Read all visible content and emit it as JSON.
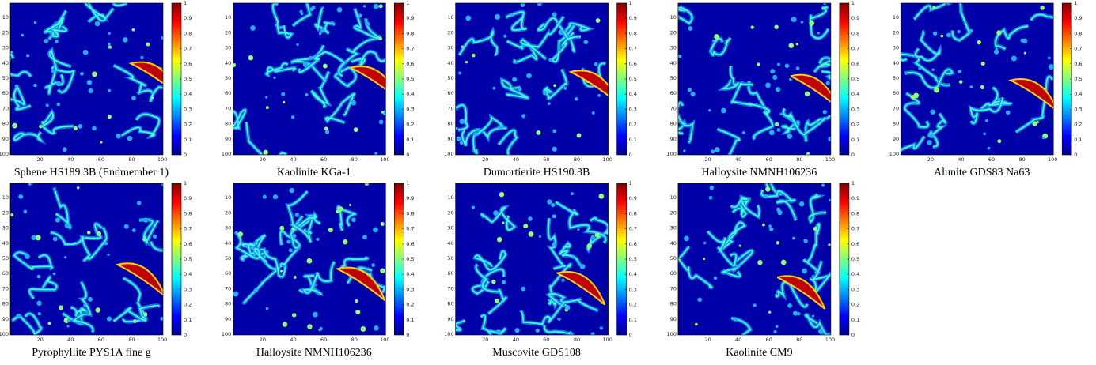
{
  "chart_data": [
    {
      "type": "heatmap",
      "title": "Sphene HS189.3B (Endmember 1)",
      "colormap": "jet",
      "xlim": [
        0.5,
        100.5
      ],
      "ylim": [
        0.5,
        100.5
      ],
      "xticks": [
        20,
        40,
        60,
        80,
        100
      ],
      "yticks": [
        10,
        20,
        30,
        40,
        50,
        60,
        70,
        80,
        90,
        100
      ],
      "clim": [
        0,
        1
      ],
      "cticks": [
        0,
        0.1,
        0.2,
        0.3,
        0.4,
        0.5,
        0.6,
        0.7,
        0.8,
        0.9,
        1
      ]
    },
    {
      "type": "heatmap",
      "title": "Kaolinite KGa-1",
      "colormap": "jet",
      "xlim": [
        0.5,
        100.5
      ],
      "ylim": [
        0.5,
        100.5
      ],
      "xticks": [
        20,
        40,
        60,
        80,
        100
      ],
      "yticks": [
        10,
        20,
        30,
        40,
        50,
        60,
        70,
        80,
        90,
        100
      ],
      "clim": [
        0,
        1
      ],
      "cticks": [
        0,
        0.1,
        0.2,
        0.3,
        0.4,
        0.5,
        0.6,
        0.7,
        0.8,
        0.9,
        1
      ]
    },
    {
      "type": "heatmap",
      "title": "Dumortierite HS190.3B",
      "colormap": "jet",
      "xlim": [
        0.5,
        100.5
      ],
      "ylim": [
        0.5,
        100.5
      ],
      "xticks": [
        20,
        40,
        60,
        80,
        100
      ],
      "yticks": [
        10,
        20,
        30,
        40,
        50,
        60,
        70,
        80,
        90,
        100
      ],
      "clim": [
        0,
        1
      ],
      "cticks": [
        0,
        0.1,
        0.2,
        0.3,
        0.4,
        0.5,
        0.6,
        0.7,
        0.8,
        0.9,
        1
      ]
    },
    {
      "type": "heatmap",
      "title": "Halloysite NMNH106236",
      "colormap": "jet",
      "xlim": [
        0.5,
        100.5
      ],
      "ylim": [
        0.5,
        100.5
      ],
      "xticks": [
        20,
        40,
        60,
        80,
        100
      ],
      "yticks": [
        10,
        20,
        30,
        40,
        50,
        60,
        70,
        80,
        90,
        100
      ],
      "clim": [
        0,
        1
      ],
      "cticks": [
        0,
        0.1,
        0.2,
        0.3,
        0.4,
        0.5,
        0.6,
        0.7,
        0.8,
        0.9,
        1
      ]
    },
    {
      "type": "heatmap",
      "title": "Alunite GDS83 Na63",
      "colormap": "jet",
      "xlim": [
        0.5,
        100.5
      ],
      "ylim": [
        0.5,
        100.5
      ],
      "xticks": [
        20,
        40,
        60,
        80,
        100
      ],
      "yticks": [
        10,
        20,
        30,
        40,
        50,
        60,
        70,
        80,
        90,
        100
      ],
      "clim": [
        0,
        1
      ],
      "cticks": [
        0,
        0.1,
        0.2,
        0.3,
        0.4,
        0.5,
        0.6,
        0.7,
        0.8,
        0.9,
        1
      ]
    },
    {
      "type": "heatmap",
      "title": "Pyrophyllite PYS1A fine g",
      "colormap": "jet",
      "xlim": [
        0.5,
        100.5
      ],
      "ylim": [
        0.5,
        100.5
      ],
      "xticks": [
        20,
        40,
        60,
        80,
        100
      ],
      "yticks": [
        10,
        20,
        30,
        40,
        50,
        60,
        70,
        80,
        90,
        100
      ],
      "clim": [
        0,
        1
      ],
      "cticks": [
        0,
        0.1,
        0.2,
        0.3,
        0.4,
        0.5,
        0.6,
        0.7,
        0.8,
        0.9,
        1
      ]
    },
    {
      "type": "heatmap",
      "title": "Halloysite NMNH106236",
      "colormap": "jet",
      "xlim": [
        0.5,
        100.5
      ],
      "ylim": [
        0.5,
        100.5
      ],
      "xticks": [
        20,
        40,
        60,
        80,
        100
      ],
      "yticks": [
        10,
        20,
        30,
        40,
        50,
        60,
        70,
        80,
        90,
        100
      ],
      "clim": [
        0,
        1
      ],
      "cticks": [
        0,
        0.1,
        0.2,
        0.3,
        0.4,
        0.5,
        0.6,
        0.7,
        0.8,
        0.9,
        1
      ]
    },
    {
      "type": "heatmap",
      "title": "Muscovite GDS108",
      "colormap": "jet",
      "xlim": [
        0.5,
        100.5
      ],
      "ylim": [
        0.5,
        100.5
      ],
      "xticks": [
        20,
        40,
        60,
        80,
        100
      ],
      "yticks": [
        10,
        20,
        30,
        40,
        50,
        60,
        70,
        80,
        90,
        100
      ],
      "clim": [
        0,
        1
      ],
      "cticks": [
        0,
        0.1,
        0.2,
        0.3,
        0.4,
        0.5,
        0.6,
        0.7,
        0.8,
        0.9,
        1
      ]
    },
    {
      "type": "heatmap",
      "title": "Kaolinite CM9",
      "colormap": "jet",
      "xlim": [
        0.5,
        100.5
      ],
      "ylim": [
        0.5,
        100.5
      ],
      "xticks": [
        20,
        40,
        60,
        80,
        100
      ],
      "yticks": [
        10,
        20,
        30,
        40,
        50,
        60,
        70,
        80,
        90,
        100
      ],
      "clim": [
        0,
        1
      ],
      "cticks": [
        0,
        0.1,
        0.2,
        0.3,
        0.4,
        0.5,
        0.6,
        0.7,
        0.8,
        0.9,
        1
      ]
    }
  ]
}
